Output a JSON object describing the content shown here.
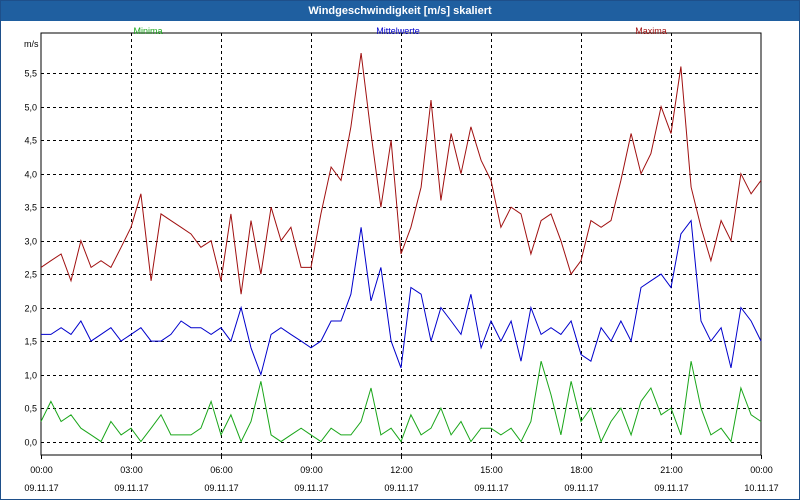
{
  "window": {
    "title": "Windgeschwindigkeit [m/s] skaliert"
  },
  "chart_data": {
    "type": "line",
    "title": "Windgeschwindigkeit [m/s] skaliert",
    "ylabel": "m/s",
    "xlabel": "",
    "ylim": [
      -0.2,
      6.1
    ],
    "y_ticks": [
      "0,0",
      "0,5",
      "1,0",
      "1,5",
      "2,0",
      "2,5",
      "3,0",
      "3,5",
      "4,0",
      "4,5",
      "5,0",
      "5,5"
    ],
    "y_tick_values": [
      0,
      0.5,
      1.0,
      1.5,
      2.0,
      2.5,
      3.0,
      3.5,
      4.0,
      4.5,
      5.0,
      5.5
    ],
    "x_ticks": [
      {
        "time": "00:00",
        "date": "09.11.17"
      },
      {
        "time": "03:00",
        "date": "09.11.17"
      },
      {
        "time": "06:00",
        "date": "09.11.17"
      },
      {
        "time": "09:00",
        "date": "09.11.17"
      },
      {
        "time": "12:00",
        "date": "09.11.17"
      },
      {
        "time": "15:00",
        "date": "09.11.17"
      },
      {
        "time": "18:00",
        "date": "09.11.17"
      },
      {
        "time": "21:00",
        "date": "09.11.17"
      },
      {
        "time": "00:00",
        "date": "10.11.17"
      }
    ],
    "grid": true,
    "legend_position": "top",
    "x_hours": [
      0,
      0.33,
      0.67,
      1,
      1.33,
      1.67,
      2,
      2.33,
      2.67,
      3,
      3.33,
      3.67,
      4,
      4.33,
      4.67,
      5,
      5.33,
      5.67,
      6,
      6.33,
      6.67,
      7,
      7.33,
      7.67,
      8,
      8.33,
      8.67,
      9,
      9.33,
      9.67,
      10,
      10.33,
      10.67,
      11,
      11.33,
      11.67,
      12,
      12.33,
      12.67,
      13,
      13.33,
      13.67,
      14,
      14.33,
      14.67,
      15,
      15.33,
      15.67,
      16,
      16.33,
      16.67,
      17,
      17.33,
      17.67,
      18,
      18.33,
      18.67,
      19,
      19.33,
      19.67,
      20,
      20.33,
      20.67,
      21,
      21.33,
      21.67,
      22,
      22.33,
      22.67,
      23,
      23.33,
      23.67,
      24
    ],
    "series": [
      {
        "name": "Minima",
        "color": "#1aa61a",
        "values": [
          0.3,
          0.6,
          0.3,
          0.4,
          0.2,
          0.1,
          0.0,
          0.3,
          0.1,
          0.2,
          0.0,
          0.2,
          0.4,
          0.1,
          0.1,
          0.1,
          0.2,
          0.6,
          0.1,
          0.4,
          0.0,
          0.3,
          0.9,
          0.1,
          0.0,
          0.1,
          0.2,
          0.1,
          0.0,
          0.2,
          0.1,
          0.1,
          0.3,
          0.8,
          0.1,
          0.2,
          0.0,
          0.4,
          0.1,
          0.2,
          0.5,
          0.1,
          0.3,
          0.0,
          0.2,
          0.2,
          0.1,
          0.2,
          0.0,
          0.3,
          1.2,
          0.7,
          0.1,
          0.9,
          0.3,
          0.5,
          0.0,
          0.3,
          0.5,
          0.1,
          0.6,
          0.8,
          0.4,
          0.5,
          0.1,
          1.2,
          0.5,
          0.1,
          0.2,
          0.0,
          0.8,
          0.4,
          0.3
        ]
      },
      {
        "name": "Mittelwerte",
        "color": "#0000cc",
        "values": [
          1.6,
          1.6,
          1.7,
          1.6,
          1.8,
          1.5,
          1.6,
          1.7,
          1.5,
          1.6,
          1.7,
          1.5,
          1.5,
          1.6,
          1.8,
          1.7,
          1.7,
          1.6,
          1.7,
          1.5,
          2.0,
          1.4,
          1.0,
          1.6,
          1.7,
          1.6,
          1.5,
          1.4,
          1.5,
          1.8,
          1.8,
          2.2,
          3.2,
          2.1,
          2.6,
          1.5,
          1.1,
          2.3,
          2.2,
          1.5,
          2.0,
          1.8,
          1.6,
          2.2,
          1.4,
          1.8,
          1.5,
          1.8,
          1.2,
          2.0,
          1.6,
          1.7,
          1.6,
          1.8,
          1.3,
          1.2,
          1.7,
          1.5,
          1.8,
          1.5,
          2.3,
          2.4,
          2.5,
          2.3,
          3.1,
          3.3,
          1.8,
          1.5,
          1.7,
          1.1,
          2.0,
          1.8,
          1.5
        ]
      },
      {
        "name": "Maxima",
        "color": "#a01010",
        "values": [
          2.6,
          2.7,
          2.8,
          2.4,
          3.0,
          2.6,
          2.7,
          2.6,
          2.9,
          3.2,
          3.7,
          2.4,
          3.4,
          3.3,
          3.2,
          3.1,
          2.9,
          3.0,
          2.4,
          3.4,
          2.2,
          3.3,
          2.5,
          3.5,
          3.0,
          3.2,
          2.6,
          2.6,
          3.4,
          4.1,
          3.9,
          4.7,
          5.8,
          4.6,
          3.5,
          4.5,
          2.8,
          3.2,
          3.8,
          5.1,
          3.6,
          4.6,
          4.0,
          4.7,
          4.2,
          3.9,
          3.2,
          3.5,
          3.4,
          2.8,
          3.3,
          3.4,
          3.0,
          2.5,
          2.7,
          3.3,
          3.2,
          3.3,
          3.9,
          4.6,
          4.0,
          4.3,
          5.0,
          4.6,
          5.6,
          3.8,
          3.2,
          2.7,
          3.3,
          3.0,
          4.0,
          3.7,
          3.9
        ]
      }
    ]
  }
}
